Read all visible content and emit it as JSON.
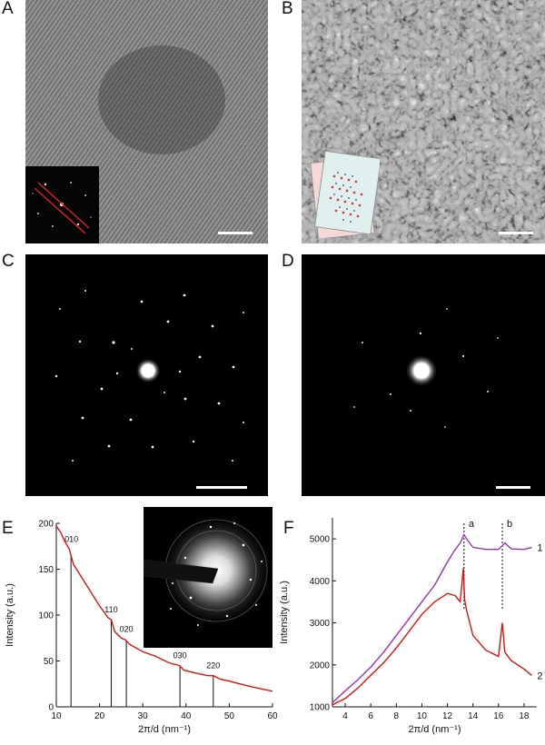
{
  "figure": {
    "panels": {
      "A": {
        "label": "A",
        "description_icon": "fft-inset-icon"
      },
      "B": {
        "label": "B",
        "description_icon": "crystal-model-inset-icon"
      },
      "C": {
        "label": "C"
      },
      "D": {
        "label": "D"
      },
      "E": {
        "label": "E"
      },
      "F": {
        "label": "F"
      }
    }
  },
  "chart_data": [
    {
      "type": "line",
      "panel": "E",
      "xlabel": "2π/d (nm⁻¹)",
      "ylabel": "Intensity (a.u.)",
      "xlim": [
        10,
        60
      ],
      "ylim": [
        0,
        200
      ],
      "xticks": [
        "10",
        "20",
        "30",
        "40",
        "50",
        "60"
      ],
      "yticks": [
        "0",
        "50",
        "100",
        "150",
        "200"
      ],
      "series": [
        {
          "color": "#dd1111",
          "x": [
            10,
            11,
            12,
            13,
            13.5,
            14,
            16,
            18,
            20,
            22,
            22.7,
            23.5,
            25,
            26,
            27,
            30,
            33,
            36,
            38.5,
            39.5,
            42,
            45,
            46.3,
            48,
            50,
            55,
            60
          ],
          "y": [
            197,
            190,
            180,
            172,
            163,
            155,
            140,
            125,
            110,
            97,
            95,
            82,
            75,
            73,
            68,
            60,
            55,
            48,
            45,
            40,
            37,
            34,
            34,
            30,
            28,
            22,
            17
          ]
        }
      ],
      "annotations": [
        {
          "text": "010",
          "x": 13.5,
          "y": 172
        },
        {
          "text": "110",
          "x": 22.7,
          "y": 95
        },
        {
          "text": "020",
          "x": 26.2,
          "y": 74
        },
        {
          "text": "030",
          "x": 38.6,
          "y": 45
        },
        {
          "text": "220",
          "x": 46.3,
          "y": 34
        }
      ],
      "reflections": [
        13.4,
        22.7,
        26.2,
        38.6,
        46.3
      ]
    },
    {
      "type": "line",
      "panel": "F",
      "xlabel": "2π/d (nm⁻¹)",
      "ylabel": "Intensity (a.u.)",
      "xlim": [
        3,
        19
      ],
      "ylim": [
        1000,
        5500
      ],
      "xticks": [
        "4",
        "6",
        "8",
        "10",
        "12",
        "14",
        "16",
        "18"
      ],
      "yticks": [
        "1000",
        "2000",
        "3000",
        "4000",
        "5000"
      ],
      "series": [
        {
          "name": "1",
          "color": "#9933aa",
          "x": [
            3,
            4,
            5,
            6,
            7,
            8,
            9,
            10,
            11,
            12,
            12.5,
            13,
            13.3,
            13.6,
            14,
            15,
            16,
            16.5,
            17,
            18,
            18.6
          ],
          "y": [
            1100,
            1380,
            1650,
            1950,
            2300,
            2700,
            3100,
            3500,
            3900,
            4450,
            4700,
            4900,
            5100,
            4950,
            4800,
            4750,
            4750,
            4900,
            4760,
            4750,
            4800
          ]
        },
        {
          "name": "2",
          "color": "#dd1111",
          "x": [
            3,
            4,
            5,
            6,
            7,
            8,
            9,
            10,
            11,
            12,
            12.6,
            13,
            13.25,
            13.35,
            13.5,
            14,
            15,
            16,
            16.3,
            16.5,
            17,
            18,
            18.6
          ],
          "y": [
            1050,
            1200,
            1450,
            1750,
            2050,
            2400,
            2800,
            3200,
            3500,
            3700,
            3650,
            3500,
            4300,
            3550,
            3300,
            2700,
            2350,
            2200,
            3000,
            2300,
            2100,
            1900,
            1750
          ]
        }
      ],
      "markers": [
        {
          "text": "a",
          "x": 13.3
        },
        {
          "text": "b",
          "x": 16.3
        }
      ]
    }
  ]
}
